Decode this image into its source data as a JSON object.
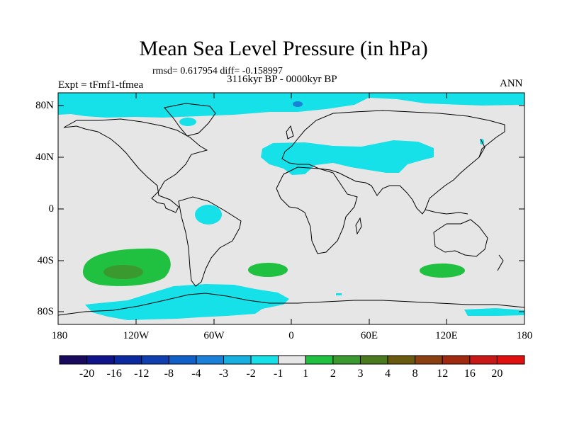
{
  "title": "Mean Sea Level Pressure (in hPa)",
  "stats": "rmsd= 0.617954  diff= -0.158997",
  "period": "3116kyr BP - 0000kyr BP",
  "experiment": "Expt = tFmf1-tfmea",
  "season": "ANN",
  "map": {
    "lat_labels": [
      "80N",
      "40N",
      "0",
      "40S",
      "80S"
    ],
    "lon_labels": [
      "180",
      "120W",
      "60W",
      "0",
      "60E",
      "120E",
      "180"
    ],
    "anomaly_regions": [
      {
        "name": "arctic-negative",
        "category": "-2 to -1"
      },
      {
        "name": "arctic-minimum",
        "category": "-4 to -3"
      },
      {
        "name": "mediterranean-asia-negative",
        "category": "-2 to -1"
      },
      {
        "name": "amazon-negative",
        "category": "-2 to -1"
      },
      {
        "name": "antarctic-negative",
        "category": "-2 to -1"
      },
      {
        "name": "south-pacific-positive",
        "category": "1 to 2"
      },
      {
        "name": "south-pacific-maximum",
        "category": "3 to 4"
      },
      {
        "name": "south-atlantic-positive",
        "category": "1 to 2"
      },
      {
        "name": "south-indian-positive",
        "category": "1 to 2"
      }
    ]
  },
  "colorbar": {
    "labels": [
      "-20",
      "-16",
      "-12",
      "-8",
      "-4",
      "-3",
      "-2",
      "-1",
      "1",
      "2",
      "3",
      "4",
      "8",
      "12",
      "16",
      "20"
    ],
    "colors": [
      "#1a0a5e",
      "#10148a",
      "#0b2aa0",
      "#1040b0",
      "#1060c8",
      "#1a80d8",
      "#18b0e0",
      "#16e0e8",
      "#e6e6e6",
      "#20c040",
      "#3a9a30",
      "#4a7a20",
      "#6a5a10",
      "#8a4010",
      "#a02a10",
      "#c81818",
      "#e01010"
    ]
  }
}
